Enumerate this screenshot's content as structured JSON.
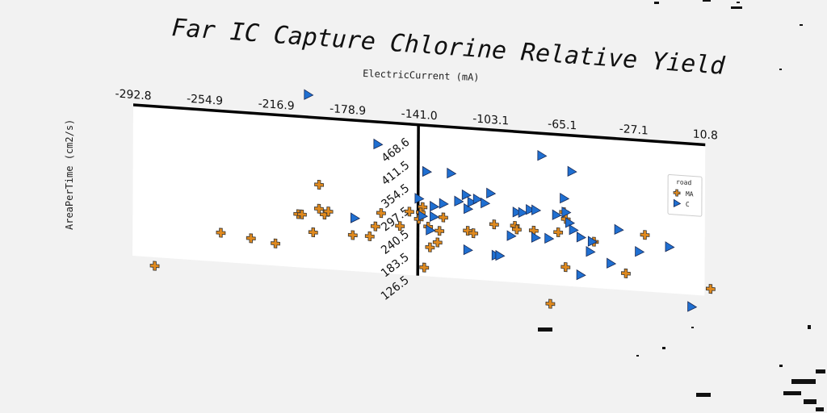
{
  "chart_data": {
    "type": "scatter",
    "title": "Far IC Capture Chlorine Relative Yield",
    "xlabel": "ElectricCurrent (mA)",
    "ylabel": "AreaPerTime (cm2/s)",
    "x_ticks": [
      "-292.8",
      "-254.9",
      "-216.9",
      "-178.9",
      "-141.0",
      "-103.1",
      "-65.1",
      "-27.1",
      "10.8"
    ],
    "y_ticks": [
      "126.5",
      "183.5",
      "240.5",
      "297.5",
      "354.5",
      "411.5",
      "468.6"
    ],
    "xlim": [
      -292.8,
      10.8
    ],
    "ylim": [
      126.5,
      468.6
    ],
    "grid": false,
    "legend": {
      "title": "road",
      "placement": "top-right"
    },
    "series": [
      {
        "name": "MA",
        "color": "#e08a1e",
        "marker": "plus",
        "points": [
          [
            -281,
            175
          ],
          [
            -246,
            230
          ],
          [
            -230,
            225
          ],
          [
            -217,
            220
          ],
          [
            -205,
            265
          ],
          [
            -203,
            265
          ],
          [
            -197,
            240
          ],
          [
            -194,
            275
          ],
          [
            -194,
            310
          ],
          [
            -191,
            267
          ],
          [
            -189,
            272
          ],
          [
            -176,
            240
          ],
          [
            -167,
            240
          ],
          [
            -164,
            255
          ],
          [
            -161,
            275
          ],
          [
            -151,
            258
          ],
          [
            -146,
            280
          ],
          [
            -141,
            270
          ],
          [
            -139,
            288
          ],
          [
            -140,
            280
          ],
          [
            -138,
            200
          ],
          [
            -136,
            260
          ],
          [
            -135,
            230
          ],
          [
            -131,
            238
          ],
          [
            -130,
            255
          ],
          [
            -128,
            275
          ],
          [
            -115,
            258
          ],
          [
            -112,
            255
          ],
          [
            -101,
            270
          ],
          [
            -90,
            270
          ],
          [
            -89,
            265
          ],
          [
            -80,
            265
          ],
          [
            -71,
            160
          ],
          [
            -67,
            265
          ],
          [
            -64,
            295
          ],
          [
            -63,
            285
          ],
          [
            -63,
            215
          ],
          [
            -48,
            255
          ],
          [
            -31,
            212
          ],
          [
            -21,
            270
          ],
          [
            14,
            198
          ]
        ]
      },
      {
        "name": "C",
        "color": "#1f6fd1",
        "marker": "triangle-right",
        "points": [
          [
            -200,
            440
          ],
          [
            -163,
            375
          ],
          [
            -175,
            265
          ],
          [
            -141,
            300
          ],
          [
            -139,
            275
          ],
          [
            -137,
            340
          ],
          [
            -135,
            255
          ],
          [
            -133,
            275
          ],
          [
            -133,
            290
          ],
          [
            -128,
            295
          ],
          [
            -124,
            340
          ],
          [
            -120,
            300
          ],
          [
            -116,
            310
          ],
          [
            -115,
            230
          ],
          [
            -115,
            290
          ],
          [
            -113,
            300
          ],
          [
            -110,
            305
          ],
          [
            -106,
            300
          ],
          [
            -103,
            315
          ],
          [
            -100,
            225
          ],
          [
            -98,
            225
          ],
          [
            -92,
            255
          ],
          [
            -89,
            290
          ],
          [
            -86,
            290
          ],
          [
            -82,
            295
          ],
          [
            -79,
            255
          ],
          [
            -79,
            295
          ],
          [
            -76,
            375
          ],
          [
            -72,
            255
          ],
          [
            -68,
            290
          ],
          [
            -64,
            315
          ],
          [
            -63,
            295
          ],
          [
            -61,
            280
          ],
          [
            -60,
            355
          ],
          [
            -59,
            270
          ],
          [
            -55,
            260
          ],
          [
            -55,
            205
          ],
          [
            -50,
            240
          ],
          [
            -49,
            255
          ],
          [
            -39,
            225
          ],
          [
            -35,
            275
          ],
          [
            -24,
            245
          ],
          [
            -8,
            255
          ],
          [
            4,
            170
          ]
        ]
      }
    ]
  }
}
